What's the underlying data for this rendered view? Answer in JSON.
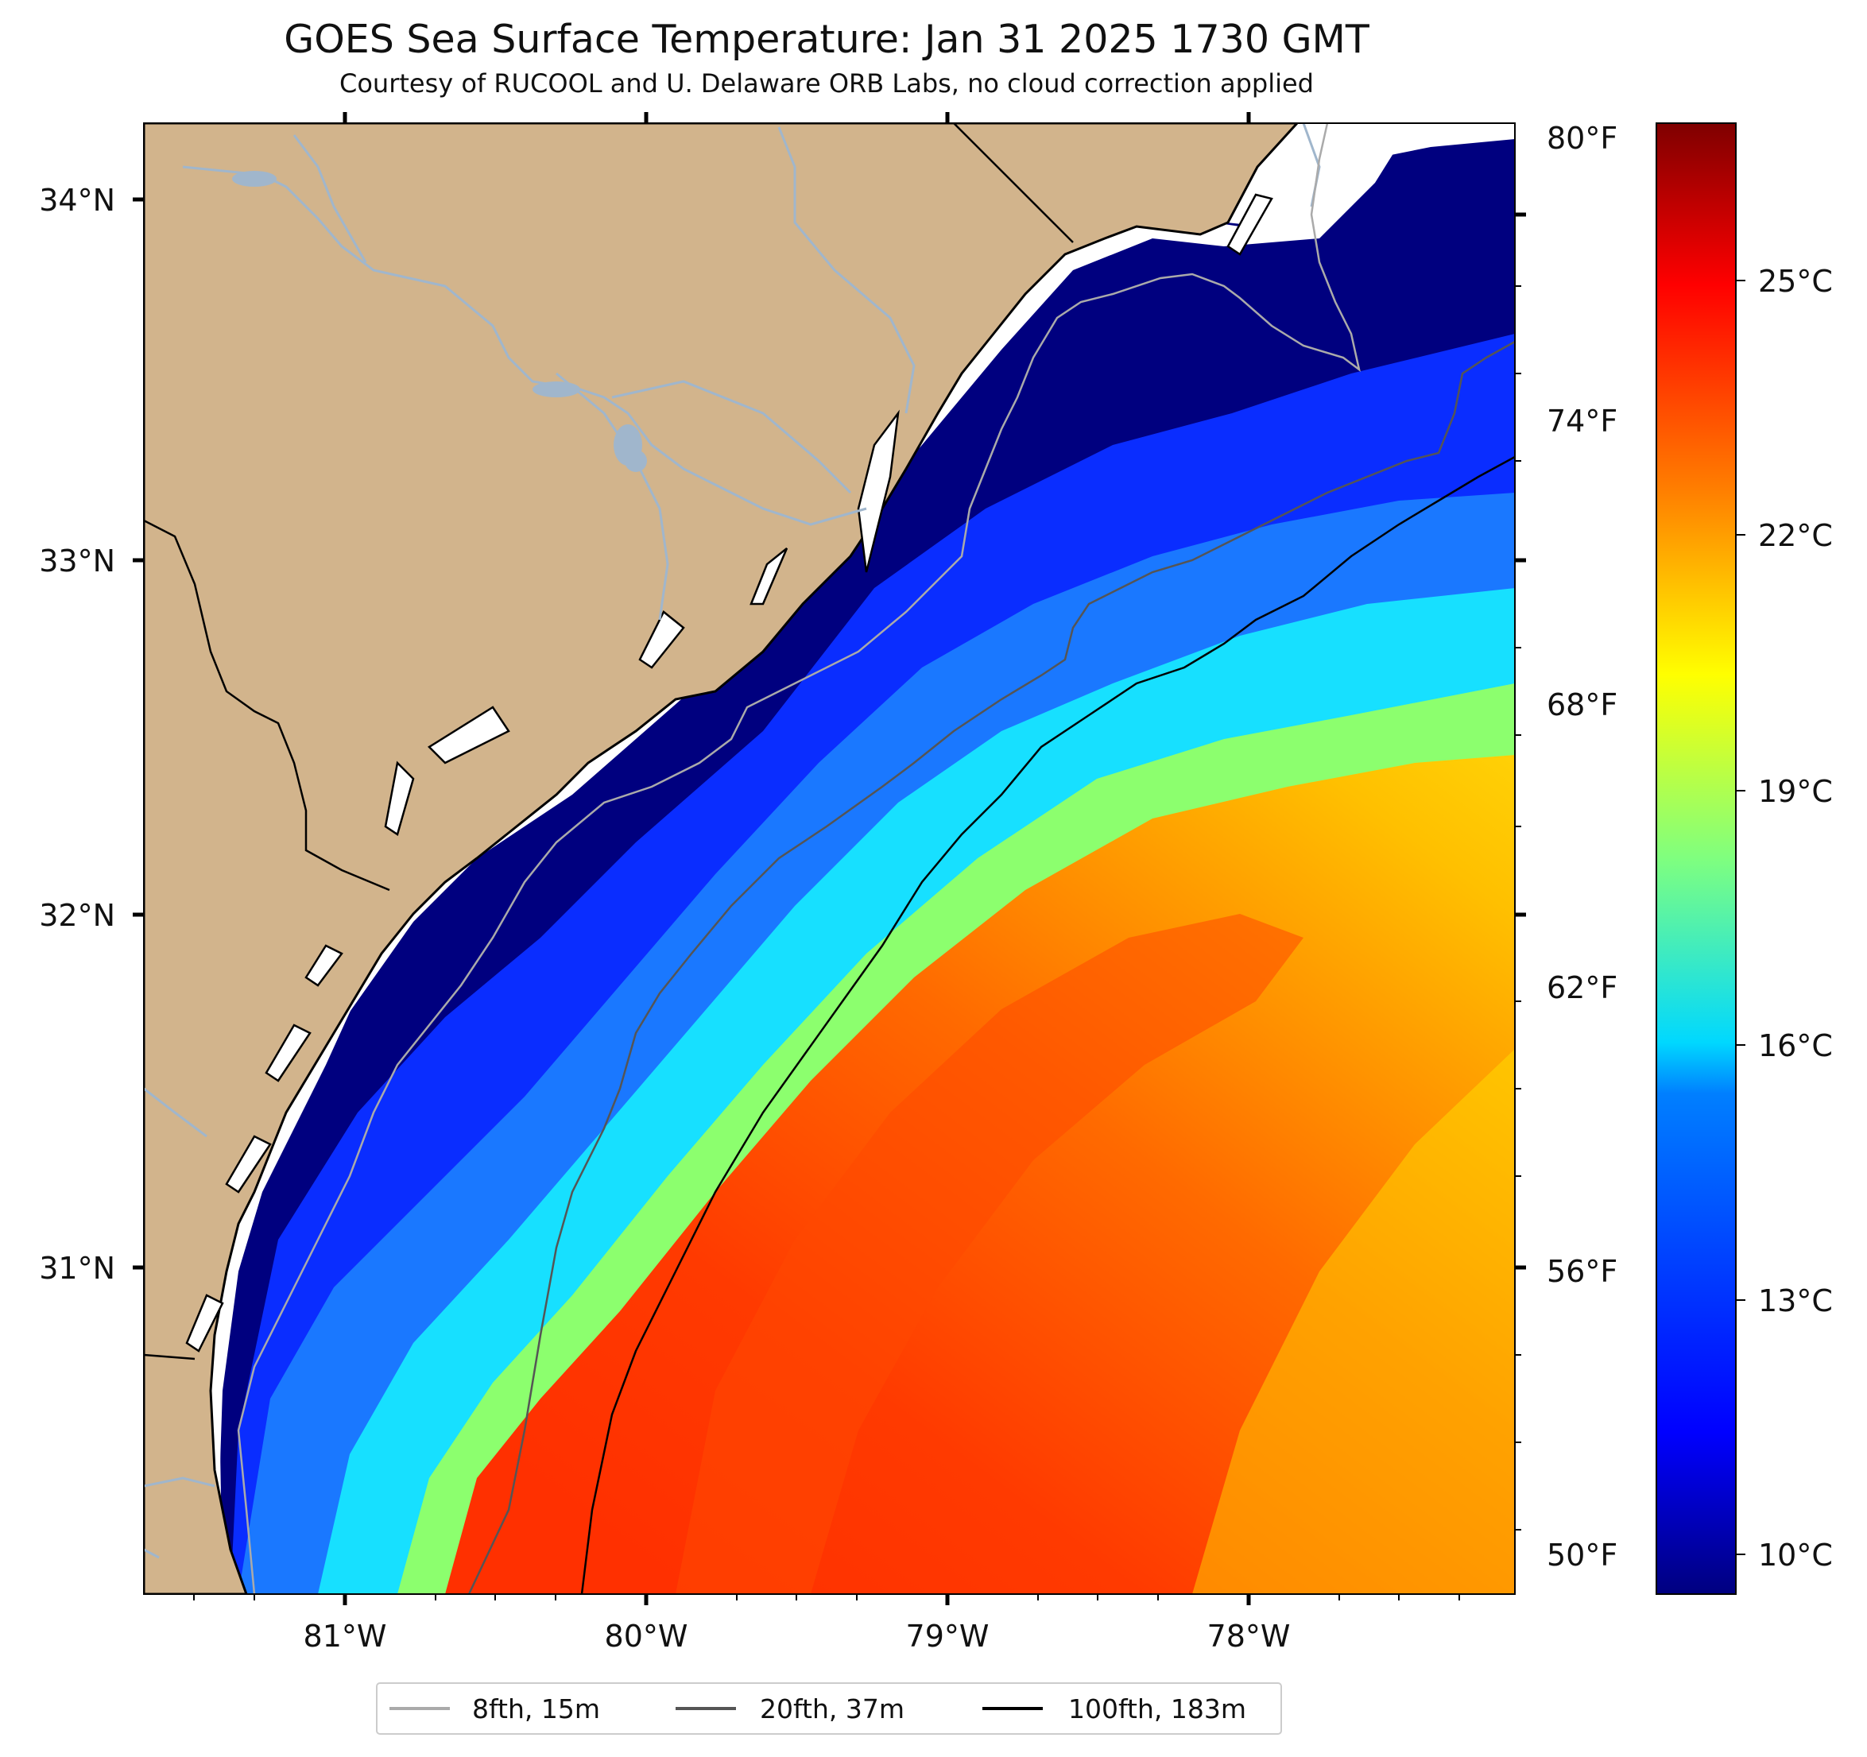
{
  "title": "GOES Sea Surface Temperature: Jan 31 2025 1730 GMT",
  "subtitle": "Courtesy of RUCOOL and U. Delaware ORB Labs, no cloud correction applied",
  "map": {
    "lon_range": [
      -81.66,
      -77.12
    ],
    "lat_range": [
      30.09,
      34.22
    ],
    "land_color": "#d2b48c",
    "coast_color": "#000000",
    "river_color": "#a0b6cc",
    "cold_shelf_color": "#00007f"
  },
  "axes": {
    "x_ticks": [
      {
        "value": -81,
        "label": "81°W"
      },
      {
        "value": -80,
        "label": "80°W"
      },
      {
        "value": -79,
        "label": "79°W"
      },
      {
        "value": -78,
        "label": "78°W"
      }
    ],
    "y_ticks_left": [
      {
        "value": 34,
        "label": "34°N"
      },
      {
        "value": 33,
        "label": "33°N"
      },
      {
        "value": 32,
        "label": "32°N"
      },
      {
        "value": 31,
        "label": "31°N"
      }
    ],
    "y_ticks_right_f": [
      {
        "value": 80,
        "label": "80°F"
      },
      {
        "value": 74,
        "label": "74°F"
      },
      {
        "value": 68,
        "label": "68°F"
      },
      {
        "value": 62,
        "label": "62°F"
      },
      {
        "value": 56,
        "label": "56°F"
      },
      {
        "value": 50,
        "label": "50°F"
      }
    ]
  },
  "colorbar": {
    "cmap": "jet",
    "range_c": [
      9.4,
      27.3
    ],
    "ticks_c": [
      {
        "value": 25,
        "label": "25°C"
      },
      {
        "value": 22,
        "label": "22°C"
      },
      {
        "value": 19,
        "label": "19°C"
      },
      {
        "value": 16,
        "label": "16°C"
      },
      {
        "value": 13,
        "label": "13°C"
      },
      {
        "value": 10,
        "label": "10°C"
      }
    ],
    "stops": [
      "#00007f",
      "#0000ff",
      "#007fff",
      "#00ffff",
      "#7fff7f",
      "#ffff00",
      "#ff7f00",
      "#ff0000",
      "#7f0000"
    ]
  },
  "legend": [
    {
      "label": "8fth, 15m",
      "color": "#aaaaaa"
    },
    {
      "label": "20fth, 37m",
      "color": "#555555"
    },
    {
      "label": "100fth, 183m",
      "color": "#000000"
    }
  ]
}
